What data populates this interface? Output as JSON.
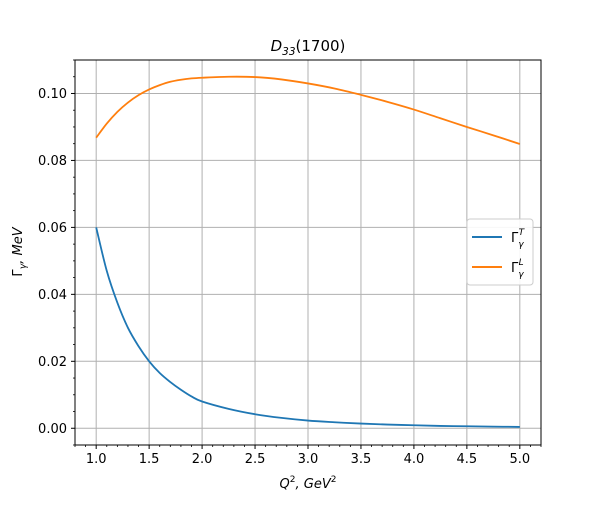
{
  "chart_data": {
    "type": "line",
    "title": "D33(1700)",
    "xlabel": "Q², GeV²",
    "ylabel": "Γγ, MeV",
    "xlim": [
      0.8,
      5.2
    ],
    "ylim": [
      -0.005,
      0.11
    ],
    "grid": true,
    "legend_position": "center-right",
    "x_ticks": [
      1.0,
      1.5,
      2.0,
      2.5,
      3.0,
      3.5,
      4.0,
      4.5,
      5.0
    ],
    "x_tick_labels": [
      "1.0",
      "1.5",
      "2.0",
      "2.5",
      "3.0",
      "3.5",
      "4.0",
      "4.5",
      "5.0"
    ],
    "y_ticks": [
      0.0,
      0.02,
      0.04,
      0.06,
      0.08,
      0.1
    ],
    "y_tick_labels": [
      "0.00",
      "0.02",
      "0.04",
      "0.06",
      "0.08",
      "0.10"
    ],
    "x": [
      1.0,
      1.1,
      1.2,
      1.3,
      1.4,
      1.5,
      1.6,
      1.7,
      1.8,
      1.9,
      2.0,
      2.25,
      2.5,
      2.75,
      3.0,
      3.25,
      3.5,
      3.75,
      4.0,
      4.25,
      4.5,
      4.75,
      5.0
    ],
    "series": [
      {
        "name": "ΓγT",
        "color": "#1f77b4",
        "values": [
          0.06,
          0.047,
          0.0375,
          0.03,
          0.0245,
          0.02,
          0.0165,
          0.0138,
          0.0115,
          0.0095,
          0.008,
          0.0058,
          0.0042,
          0.0031,
          0.0023,
          0.0018,
          0.0014,
          0.0011,
          0.0009,
          0.0007,
          0.0006,
          0.0005,
          0.0004
        ]
      },
      {
        "name": "ΓγL",
        "color": "#ff7f0e",
        "values": [
          0.0868,
          0.091,
          0.0945,
          0.0973,
          0.0995,
          0.1012,
          0.1025,
          0.1035,
          0.1041,
          0.1045,
          0.1047,
          0.105,
          0.1049,
          0.1042,
          0.103,
          0.1015,
          0.0996,
          0.0975,
          0.0952,
          0.0926,
          0.09,
          0.0875,
          0.0849
        ]
      }
    ]
  },
  "legend": {
    "series_0_base": "Γ",
    "series_0_sub": "γ",
    "series_0_sup": "T",
    "series_1_base": "Γ",
    "series_1_sub": "γ",
    "series_1_sup": "L"
  },
  "title_parts": {
    "base": "D",
    "sub": "33",
    "rest": "(1700)"
  },
  "xlabel_parts": {
    "a": "Q",
    "a_sup": "2",
    "b": ", GeV",
    "b_sup": "2"
  },
  "ylabel_parts": {
    "a": "Γ",
    "a_sub": "γ",
    "b": ", MeV"
  }
}
